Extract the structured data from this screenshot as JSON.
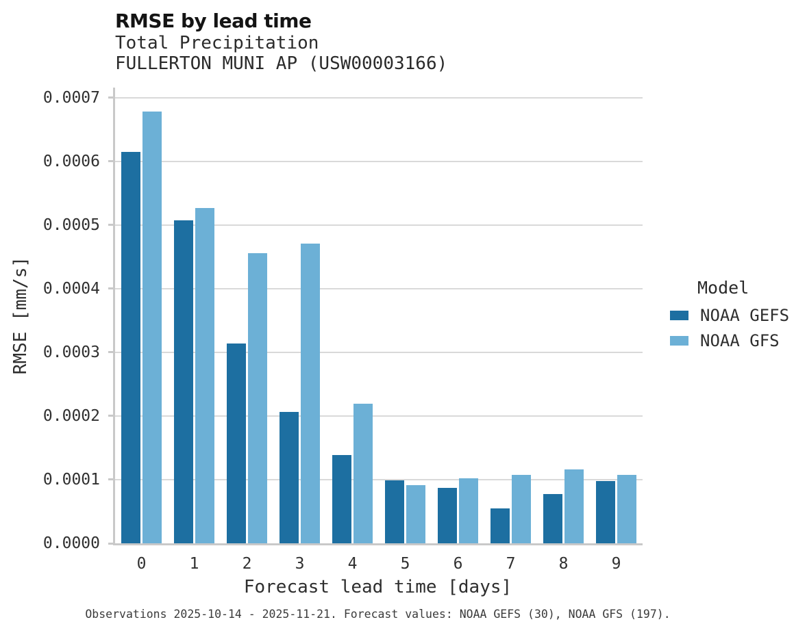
{
  "header": {
    "title": "RMSE by lead time",
    "subtitle_line1": "Total Precipitation",
    "subtitle_line2": "FULLERTON MUNI AP (USW00003166)"
  },
  "chart_data": {
    "type": "bar",
    "title": "RMSE by lead time",
    "subtitle": [
      "Total Precipitation",
      "FULLERTON MUNI AP (USW00003166)"
    ],
    "xlabel": "Forecast lead time [days]",
    "ylabel": "RMSE [mm/s]",
    "categories": [
      "0",
      "1",
      "2",
      "3",
      "4",
      "5",
      "6",
      "7",
      "8",
      "9"
    ],
    "series": [
      {
        "name": "NOAA GEFS",
        "color": "#1d6fa1",
        "values": [
          0.000615,
          0.000507,
          0.000314,
          0.000206,
          0.000139,
          9.9e-05,
          8.7e-05,
          5.5e-05,
          7.7e-05,
          9.8e-05
        ]
      },
      {
        "name": "NOAA GFS",
        "color": "#6cb0d6",
        "values": [
          0.000678,
          0.000527,
          0.000456,
          0.000471,
          0.000219,
          9.1e-05,
          0.000102,
          0.000107,
          0.000116,
          0.000107
        ]
      }
    ],
    "ylim": [
      0,
      0.000716
    ],
    "yticks": [
      0,
      0.0001,
      0.0002,
      0.0003,
      0.0004,
      0.0005,
      0.0006,
      0.0007
    ],
    "ytick_labels": [
      "0.0000",
      "0.0001",
      "0.0002",
      "0.0003",
      "0.0004",
      "0.0005",
      "0.0006",
      "0.0007"
    ],
    "grid": "horizontal",
    "legend_position": "right",
    "legend_title": "Model"
  },
  "legend": {
    "title": "Model",
    "items": [
      {
        "label": "NOAA GEFS",
        "color": "#1d6fa1"
      },
      {
        "label": "NOAA GFS",
        "color": "#6cb0d6"
      }
    ]
  },
  "caption": "Observations 2025-10-14 - 2025-11-21. Forecast values: NOAA GEFS (30), NOAA GFS (197).",
  "colors": {
    "gefs": "#1d6fa1",
    "gfs": "#6cb0d6",
    "gridline": "#d9d9d9",
    "spine": "#c9c9c9"
  }
}
